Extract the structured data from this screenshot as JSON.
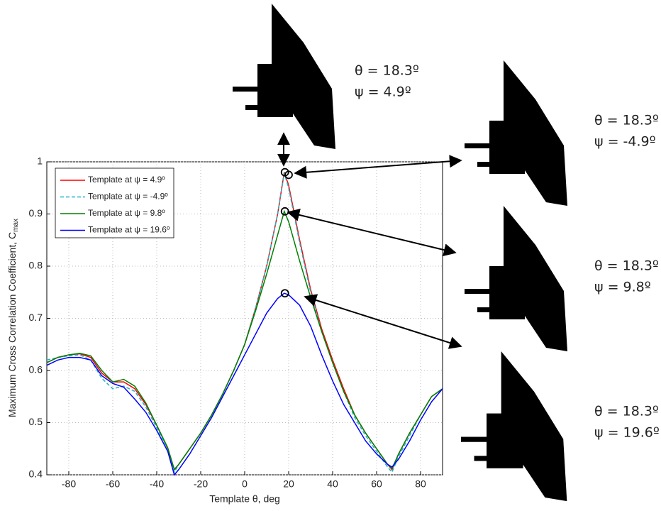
{
  "chart_data": {
    "type": "line",
    "xlabel": "Template θ, deg",
    "ylabel": "Maximum Cross Correlation Coefficient, C",
    "ylabel_sub": "max",
    "xlim": [
      -90,
      90
    ],
    "ylim": [
      0.4,
      1
    ],
    "xticks": [
      -80,
      -60,
      -40,
      -20,
      0,
      20,
      40,
      60,
      80
    ],
    "yticks": [
      0.4,
      0.5,
      0.6,
      0.7,
      0.8,
      0.9,
      1
    ],
    "grid": true,
    "legend": "top-left",
    "x": [
      -90,
      -85,
      -80,
      -75,
      -70,
      -65,
      -60,
      -55,
      -50,
      -45,
      -40,
      -35,
      -32,
      -30,
      -25,
      -20,
      -15,
      -10,
      -5,
      0,
      5,
      10,
      15,
      18,
      20,
      25,
      30,
      35,
      40,
      45,
      50,
      55,
      60,
      65,
      67,
      70,
      75,
      80,
      85,
      90
    ],
    "series": [
      {
        "name": "Template at ψ = 4.9º",
        "color": "#ff0000",
        "dash": false,
        "values": [
          0.615,
          0.625,
          0.63,
          0.632,
          0.625,
          0.595,
          0.578,
          0.578,
          0.565,
          0.535,
          0.495,
          0.45,
          0.41,
          0.42,
          0.45,
          0.48,
          0.515,
          0.555,
          0.6,
          0.65,
          0.72,
          0.8,
          0.9,
          0.98,
          0.955,
          0.85,
          0.755,
          0.68,
          0.62,
          0.565,
          0.515,
          0.48,
          0.45,
          0.42,
          0.41,
          0.44,
          0.48,
          0.515,
          0.55,
          0.565
        ]
      },
      {
        "name": "Template at ψ = -4.9º",
        "color": "#20b2c8",
        "dash": true,
        "values": [
          0.62,
          0.625,
          0.628,
          0.63,
          0.62,
          0.585,
          0.565,
          0.57,
          0.56,
          0.53,
          0.49,
          0.45,
          0.405,
          0.42,
          0.45,
          0.48,
          0.515,
          0.555,
          0.6,
          0.65,
          0.72,
          0.8,
          0.9,
          0.978,
          0.95,
          0.845,
          0.75,
          0.675,
          0.615,
          0.56,
          0.51,
          0.475,
          0.445,
          0.415,
          0.405,
          0.435,
          0.475,
          0.515,
          0.55,
          0.565
        ]
      },
      {
        "name": "Template at ψ = 9.8º",
        "color": "#008000",
        "dash": false,
        "values": [
          0.615,
          0.625,
          0.63,
          0.633,
          0.628,
          0.6,
          0.578,
          0.583,
          0.57,
          0.538,
          0.495,
          0.452,
          0.41,
          0.42,
          0.45,
          0.48,
          0.515,
          0.555,
          0.6,
          0.65,
          0.715,
          0.785,
          0.86,
          0.905,
          0.885,
          0.81,
          0.74,
          0.675,
          0.615,
          0.56,
          0.515,
          0.48,
          0.45,
          0.42,
          0.412,
          0.44,
          0.48,
          0.515,
          0.55,
          0.565
        ]
      },
      {
        "name": "Template at ψ = 19.6º",
        "color": "#0000ff",
        "dash": false,
        "values": [
          0.61,
          0.62,
          0.625,
          0.625,
          0.62,
          0.59,
          0.575,
          0.568,
          0.545,
          0.52,
          0.485,
          0.445,
          0.4,
          0.41,
          0.44,
          0.475,
          0.51,
          0.55,
          0.59,
          0.63,
          0.67,
          0.71,
          0.738,
          0.748,
          0.745,
          0.725,
          0.685,
          0.63,
          0.58,
          0.535,
          0.5,
          0.465,
          0.44,
          0.42,
          0.415,
          0.43,
          0.465,
          0.505,
          0.54,
          0.565
        ]
      }
    ],
    "annotations": [
      {
        "theta": "θ = 18.3º",
        "psi": "ψ = 4.9º",
        "point": [
          18.3,
          0.98
        ]
      },
      {
        "theta": "θ = 18.3º",
        "psi": "ψ = -4.9º",
        "point": [
          20,
          0.975
        ]
      },
      {
        "theta": "θ = 18.3º",
        "psi": "ψ = 9.8º",
        "point": [
          18.3,
          0.905
        ]
      },
      {
        "theta": "θ = 18.3º",
        "psi": "ψ = 19.6º",
        "point": [
          18.3,
          0.748
        ]
      }
    ]
  }
}
